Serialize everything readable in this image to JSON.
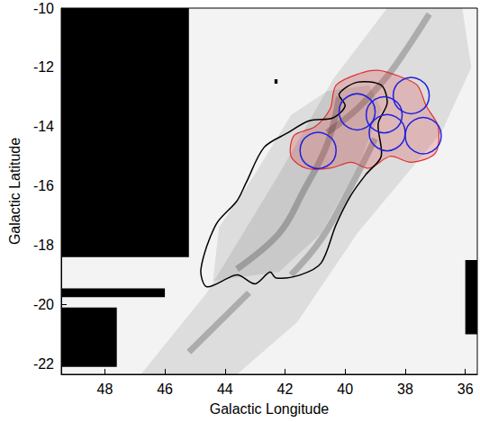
{
  "chart_data": {
    "type": "map",
    "xlabel": "Galactic Longitude",
    "ylabel": "Galactic Latitude",
    "xlim": [
      49.45,
      35.6
    ],
    "ylim": [
      -22.35,
      -10
    ],
    "xticks": [
      48,
      46,
      44,
      42,
      40,
      38,
      36
    ],
    "yticks": [
      -22,
      -20,
      -18,
      -16,
      -14,
      -12,
      -10
    ],
    "emission": [
      [
        [
          38.6,
          -10
        ],
        [
          36.1,
          -10
        ],
        [
          35.8,
          -12
        ],
        [
          36.8,
          -14.2
        ],
        [
          39.6,
          -17.6
        ],
        [
          41.6,
          -20.6
        ],
        [
          43.6,
          -22.35
        ],
        [
          46.8,
          -22.35
        ],
        [
          44.6,
          -19.6
        ],
        [
          42.2,
          -15.6
        ],
        [
          40.4,
          -12.4
        ]
      ],
      [
        [
          41.8,
          -13.6
        ],
        [
          40.6,
          -12.8
        ],
        [
          39.2,
          -12.6
        ],
        [
          38.8,
          -13.4
        ],
        [
          39.6,
          -15.4
        ],
        [
          40.8,
          -17.6
        ],
        [
          42.2,
          -18.9
        ],
        [
          44.4,
          -19.2
        ],
        [
          44.2,
          -17.4
        ],
        [
          43.0,
          -15.6
        ]
      ]
    ],
    "filaments": [
      [
        [
          37.2,
          -10.2
        ],
        [
          37.9,
          -11.3
        ],
        [
          38.6,
          -12.3
        ],
        [
          39.6,
          -13.4
        ],
        [
          40.6,
          -14.2
        ]
      ],
      [
        [
          40.2,
          -13.0
        ],
        [
          40.6,
          -14.6
        ],
        [
          41.4,
          -16.2
        ],
        [
          42.2,
          -17.6
        ],
        [
          43.6,
          -18.8
        ]
      ],
      [
        [
          39.0,
          -14.4
        ],
        [
          39.8,
          -16.0
        ],
        [
          40.8,
          -17.8
        ],
        [
          41.8,
          -19.0
        ]
      ],
      [
        [
          43.2,
          -19.6
        ],
        [
          44.2,
          -20.6
        ],
        [
          45.2,
          -21.6
        ]
      ]
    ],
    "masks": [
      [
        49.45,
        45.2,
        -10,
        -18.4
      ],
      [
        49.45,
        46.0,
        -19.45,
        -19.75
      ],
      [
        49.45,
        47.6,
        -20.1,
        -22.1
      ],
      [
        36.0,
        35.6,
        -18.5,
        -21.0
      ],
      [
        42.35,
        42.25,
        -12.4,
        -12.55
      ]
    ],
    "contour": {
      "color": "#000000",
      "points": [
        [
          40.2,
          -12.9
        ],
        [
          39.6,
          -12.5
        ],
        [
          38.8,
          -12.6
        ],
        [
          38.6,
          -13.2
        ],
        [
          38.9,
          -13.9
        ],
        [
          38.8,
          -15.0
        ],
        [
          39.3,
          -15.6
        ],
        [
          39.8,
          -16.3
        ],
        [
          40.3,
          -17.3
        ],
        [
          40.8,
          -18.6
        ],
        [
          41.5,
          -19.0
        ],
        [
          42.3,
          -19.1
        ],
        [
          42.5,
          -18.9
        ],
        [
          43.0,
          -19.3
        ],
        [
          43.6,
          -19.0
        ],
        [
          44.6,
          -19.4
        ],
        [
          44.8,
          -18.8
        ],
        [
          44.3,
          -17.3
        ],
        [
          43.6,
          -16.5
        ],
        [
          43.3,
          -15.9
        ],
        [
          42.7,
          -14.7
        ],
        [
          41.9,
          -14.2
        ],
        [
          41.2,
          -13.8
        ],
        [
          40.4,
          -13.7
        ],
        [
          40.0,
          -13.3
        ]
      ]
    },
    "region": {
      "color": "#e03030",
      "points": [
        [
          41.7,
          -14.3
        ],
        [
          41.0,
          -14.0
        ],
        [
          40.5,
          -13.4
        ],
        [
          40.3,
          -12.6
        ],
        [
          39.5,
          -12.2
        ],
        [
          38.9,
          -12.1
        ],
        [
          38.2,
          -12.3
        ],
        [
          37.6,
          -12.6
        ],
        [
          37.3,
          -13.3
        ],
        [
          36.9,
          -14.0
        ],
        [
          37.0,
          -14.9
        ],
        [
          37.8,
          -15.2
        ],
        [
          38.5,
          -15.0
        ],
        [
          39.2,
          -15.4
        ],
        [
          39.8,
          -15.2
        ],
        [
          40.5,
          -15.4
        ],
        [
          41.3,
          -15.4
        ],
        [
          41.8,
          -15.0
        ]
      ]
    },
    "circles": {
      "color": "#2020e0",
      "radius": 0.6,
      "centers": [
        [
          40.9,
          -14.8
        ],
        [
          39.6,
          -13.5
        ],
        [
          38.7,
          -13.6
        ],
        [
          38.6,
          -14.2
        ],
        [
          37.8,
          -12.95
        ],
        [
          37.4,
          -14.3
        ]
      ]
    }
  }
}
